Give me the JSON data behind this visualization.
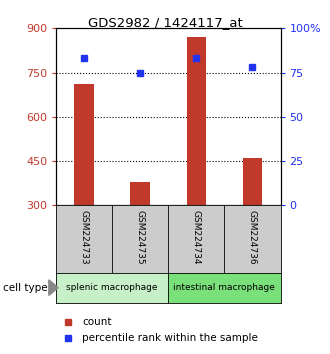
{
  "title": "GDS2982 / 1424117_at",
  "samples": [
    "GSM224733",
    "GSM224735",
    "GSM224734",
    "GSM224736"
  ],
  "counts": [
    710,
    380,
    870,
    460
  ],
  "percentile_ranks": [
    83,
    75,
    83,
    78
  ],
  "y_min": 300,
  "y_max": 900,
  "y_ticks": [
    300,
    450,
    600,
    750,
    900
  ],
  "y2_ticks": [
    0,
    25,
    50,
    75,
    100
  ],
  "y2_labels": [
    "0",
    "25",
    "50",
    "75",
    "100%"
  ],
  "bar_color": "#c0392b",
  "marker_color": "#2233ee",
  "dotted_lines": [
    450,
    600,
    750
  ],
  "groups": [
    {
      "label": "splenic macrophage",
      "indices": [
        0,
        1
      ],
      "color": "#c8f0c8"
    },
    {
      "label": "intestinal macrophage",
      "indices": [
        2,
        3
      ],
      "color": "#7ae07a"
    }
  ],
  "cell_type_label": "cell type",
  "legend_count_label": "count",
  "legend_pct_label": "percentile rank within the sample",
  "bar_width": 0.35,
  "background_color": "#ffffff",
  "label_area_color": "#cccccc"
}
